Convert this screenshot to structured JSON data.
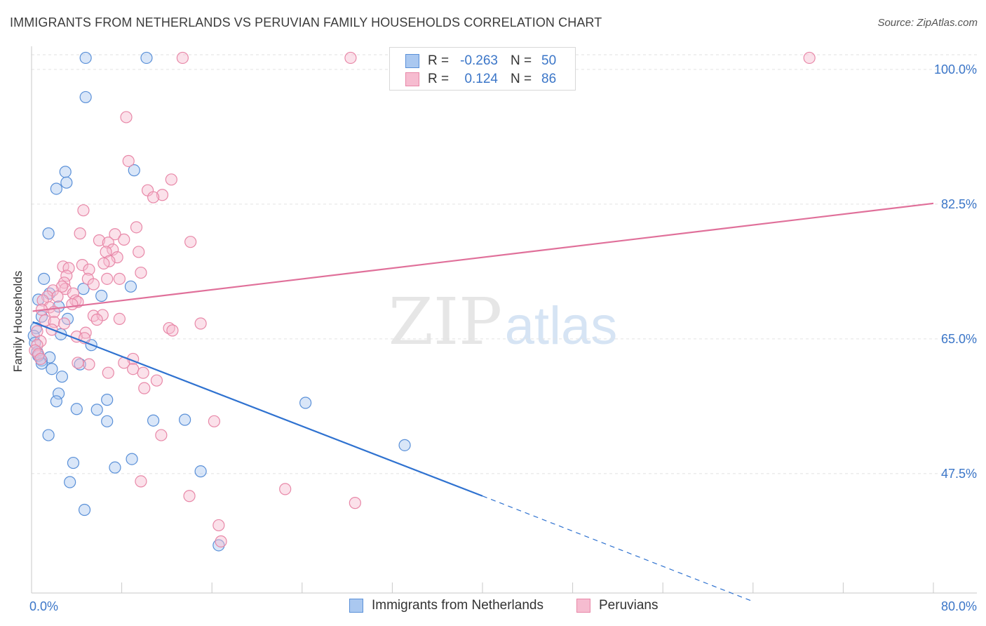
{
  "title": "IMMIGRANTS FROM NETHERLANDS VS PERUVIAN FAMILY HOUSEHOLDS CORRELATION CHART",
  "source": "Source: ZipAtlas.com",
  "watermark": {
    "zip": "ZIP",
    "atlas": "atlas"
  },
  "legend_top": {
    "rows": [
      {
        "r_label": "R =",
        "r_value": "-0.263",
        "n_label": "N =",
        "n_value": "50"
      },
      {
        "r_label": "R =",
        "r_value": "0.124",
        "n_label": "N =",
        "n_value": "86"
      }
    ]
  },
  "colors": {
    "blue_fill": "#aac8f0",
    "blue_stroke": "#5a90d8",
    "blue_line": "#2f72d0",
    "pink_fill": "#f6bcd0",
    "pink_stroke": "#e888a8",
    "pink_line": "#e0709a",
    "tick_label": "#3b76c8",
    "grid": "#e2e2e2"
  },
  "chart_data": {
    "type": "scatter",
    "ylabel": "Family Households",
    "xlim": [
      0,
      80
    ],
    "ylim": [
      32,
      103
    ],
    "x_tick_labels": [
      "0.0%",
      "80.0%"
    ],
    "y_ticks": [
      {
        "value": 100,
        "label": "100.0%"
      },
      {
        "value": 82.5,
        "label": "82.5%"
      },
      {
        "value": 65,
        "label": "65.0%"
      },
      {
        "value": 47.5,
        "label": "47.5%"
      }
    ],
    "grid": true,
    "legend_position": "bottom",
    "series": [
      {
        "name": "Immigrants from Netherlands",
        "color": "blue",
        "trend": {
          "x0": 0.1,
          "y0": 67.2,
          "x1": 40.0,
          "y1": 44.6,
          "dash_to_x": 64.0,
          "dash_to_y": 30.9
        },
        "points": [
          [
            4.8,
            101.5
          ],
          [
            10.2,
            101.5
          ],
          [
            4.8,
            96.4
          ],
          [
            9.1,
            86.9
          ],
          [
            3.0,
            86.7
          ],
          [
            3.1,
            85.3
          ],
          [
            2.2,
            84.5
          ],
          [
            1.5,
            78.7
          ],
          [
            1.1,
            72.8
          ],
          [
            8.8,
            71.8
          ],
          [
            4.6,
            71.5
          ],
          [
            6.2,
            70.6
          ],
          [
            1.6,
            70.9
          ],
          [
            0.6,
            70.1
          ],
          [
            2.4,
            69.2
          ],
          [
            3.2,
            67.6
          ],
          [
            0.9,
            67.9
          ],
          [
            0.4,
            66.4
          ],
          [
            2.6,
            65.6
          ],
          [
            0.2,
            65.4
          ],
          [
            0.3,
            64.5
          ],
          [
            5.3,
            64.2
          ],
          [
            0.5,
            63.3
          ],
          [
            0.9,
            62.2
          ],
          [
            0.6,
            62.8
          ],
          [
            1.6,
            62.6
          ],
          [
            0.9,
            61.8
          ],
          [
            4.3,
            61.7
          ],
          [
            1.8,
            61.1
          ],
          [
            2.7,
            60.1
          ],
          [
            2.4,
            57.9
          ],
          [
            6.7,
            57.1
          ],
          [
            2.2,
            56.9
          ],
          [
            24.3,
            56.7
          ],
          [
            4.0,
            55.9
          ],
          [
            5.8,
            55.8
          ],
          [
            6.7,
            54.3
          ],
          [
            10.8,
            54.4
          ],
          [
            13.6,
            54.5
          ],
          [
            33.1,
            51.2
          ],
          [
            1.5,
            52.5
          ],
          [
            8.9,
            49.4
          ],
          [
            3.7,
            48.9
          ],
          [
            7.4,
            48.3
          ],
          [
            15.0,
            47.8
          ],
          [
            3.4,
            46.4
          ],
          [
            4.7,
            42.8
          ],
          [
            16.6,
            38.2
          ]
        ]
      },
      {
        "name": "Peruvians",
        "color": "pink",
        "trend": {
          "x0": 0.1,
          "y0": 68.6,
          "x1": 80.0,
          "y1": 82.6
        },
        "points": [
          [
            13.4,
            101.5
          ],
          [
            28.3,
            101.5
          ],
          [
            69.0,
            101.5
          ],
          [
            8.4,
            93.8
          ],
          [
            8.6,
            88.1
          ],
          [
            12.4,
            85.7
          ],
          [
            10.3,
            84.3
          ],
          [
            11.6,
            83.7
          ],
          [
            10.8,
            83.4
          ],
          [
            4.6,
            81.7
          ],
          [
            9.3,
            79.5
          ],
          [
            4.3,
            78.7
          ],
          [
            7.4,
            78.6
          ],
          [
            6.0,
            77.8
          ],
          [
            8.2,
            77.9
          ],
          [
            14.1,
            77.6
          ],
          [
            6.8,
            77.5
          ],
          [
            7.2,
            76.6
          ],
          [
            9.5,
            76.3
          ],
          [
            6.6,
            76.3
          ],
          [
            7.6,
            75.6
          ],
          [
            6.9,
            75.1
          ],
          [
            6.4,
            74.8
          ],
          [
            4.5,
            74.6
          ],
          [
            2.8,
            74.4
          ],
          [
            3.3,
            74.2
          ],
          [
            5.1,
            74.0
          ],
          [
            9.7,
            73.6
          ],
          [
            3.1,
            73.2
          ],
          [
            5.0,
            72.8
          ],
          [
            6.7,
            72.8
          ],
          [
            7.8,
            72.8
          ],
          [
            2.9,
            72.3
          ],
          [
            5.5,
            72.1
          ],
          [
            3.0,
            71.5
          ],
          [
            2.7,
            71.8
          ],
          [
            1.9,
            71.3
          ],
          [
            3.7,
            70.9
          ],
          [
            1.4,
            70.5
          ],
          [
            2.3,
            70.5
          ],
          [
            1.0,
            70.0
          ],
          [
            3.9,
            70.0
          ],
          [
            4.1,
            69.8
          ],
          [
            3.6,
            69.5
          ],
          [
            1.6,
            69.1
          ],
          [
            0.9,
            68.8
          ],
          [
            2.0,
            68.5
          ],
          [
            5.5,
            68.0
          ],
          [
            6.3,
            68.1
          ],
          [
            5.8,
            67.5
          ],
          [
            7.8,
            67.6
          ],
          [
            1.2,
            67.4
          ],
          [
            2.0,
            67.2
          ],
          [
            2.9,
            67.0
          ],
          [
            15.0,
            67.0
          ],
          [
            12.2,
            66.4
          ],
          [
            12.5,
            66.1
          ],
          [
            0.5,
            66.0
          ],
          [
            1.8,
            66.2
          ],
          [
            4.8,
            65.8
          ],
          [
            4.0,
            65.3
          ],
          [
            4.7,
            65.1
          ],
          [
            0.8,
            64.7
          ],
          [
            0.5,
            64.2
          ],
          [
            0.3,
            63.5
          ],
          [
            0.6,
            63.0
          ],
          [
            0.8,
            62.4
          ],
          [
            9.0,
            62.4
          ],
          [
            8.2,
            61.9
          ],
          [
            4.1,
            61.9
          ],
          [
            5.1,
            61.7
          ],
          [
            9.0,
            61.1
          ],
          [
            6.8,
            60.6
          ],
          [
            9.9,
            60.6
          ],
          [
            11.1,
            59.6
          ],
          [
            10.0,
            58.6
          ],
          [
            16.2,
            54.3
          ],
          [
            11.5,
            52.5
          ],
          [
            9.7,
            46.5
          ],
          [
            22.5,
            45.5
          ],
          [
            14.0,
            44.6
          ],
          [
            28.7,
            43.7
          ],
          [
            16.6,
            40.8
          ],
          [
            16.8,
            38.7
          ]
        ]
      }
    ]
  },
  "legend_bottom": [
    {
      "label": "Immigrants from Netherlands"
    },
    {
      "label": "Peruvians"
    }
  ]
}
